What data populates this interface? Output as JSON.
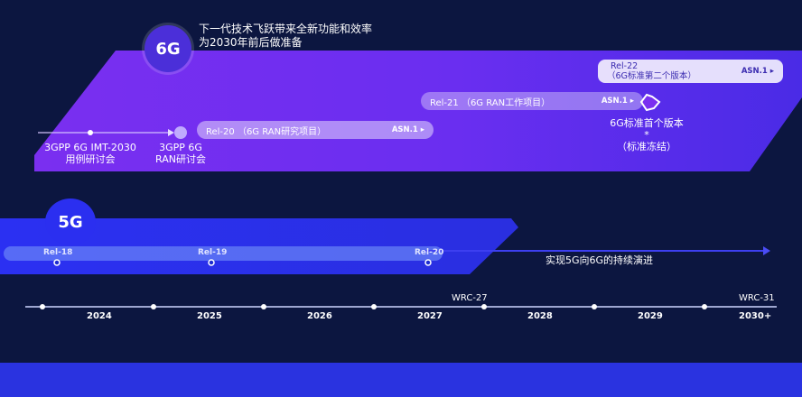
{
  "headline": {
    "line1": "下一代技术飞跃带来全新功能和效率",
    "line2": "为2030年前后做准备"
  },
  "logos": {
    "sixg": "6G",
    "fiveg": "5G"
  },
  "sixg": {
    "workshop1": {
      "line1": "3GPP 6G IMT-2030",
      "line2": "用例研讨会"
    },
    "workshop2": {
      "line1": "3GPP 6G",
      "line2": "RAN研讨会"
    },
    "rel20": {
      "label": "Rel-20 （6G RAN研究项目）",
      "asn": "ASN.1 ▸"
    },
    "rel21": {
      "label": "Rel-21 （6G RAN工作项目）",
      "asn": "ASN.1 ▸"
    },
    "rel22": {
      "line1": "Rel-22",
      "line2": "（6G标准第二个版本）",
      "asn": "ASN.1 ▸"
    },
    "milestone": {
      "line1": "6G标准首个版本",
      "line2": "*",
      "line3": "（标准冻结）"
    }
  },
  "fiveg": {
    "releases": [
      "Rel-18",
      "Rel-19",
      "Rel-20"
    ],
    "evolution": "实现5G向6G的持续演进"
  },
  "timeline": {
    "years": [
      "2024",
      "2025",
      "2026",
      "2027",
      "2028",
      "2029",
      "2030+"
    ],
    "wrc": [
      "WRC-27",
      "WRC-31"
    ]
  },
  "colors": {
    "background": "#0c1640",
    "sixg_band": "#6b2ff0",
    "fiveg_band": "#2b2ff0",
    "bottom": "#2a33e0"
  }
}
